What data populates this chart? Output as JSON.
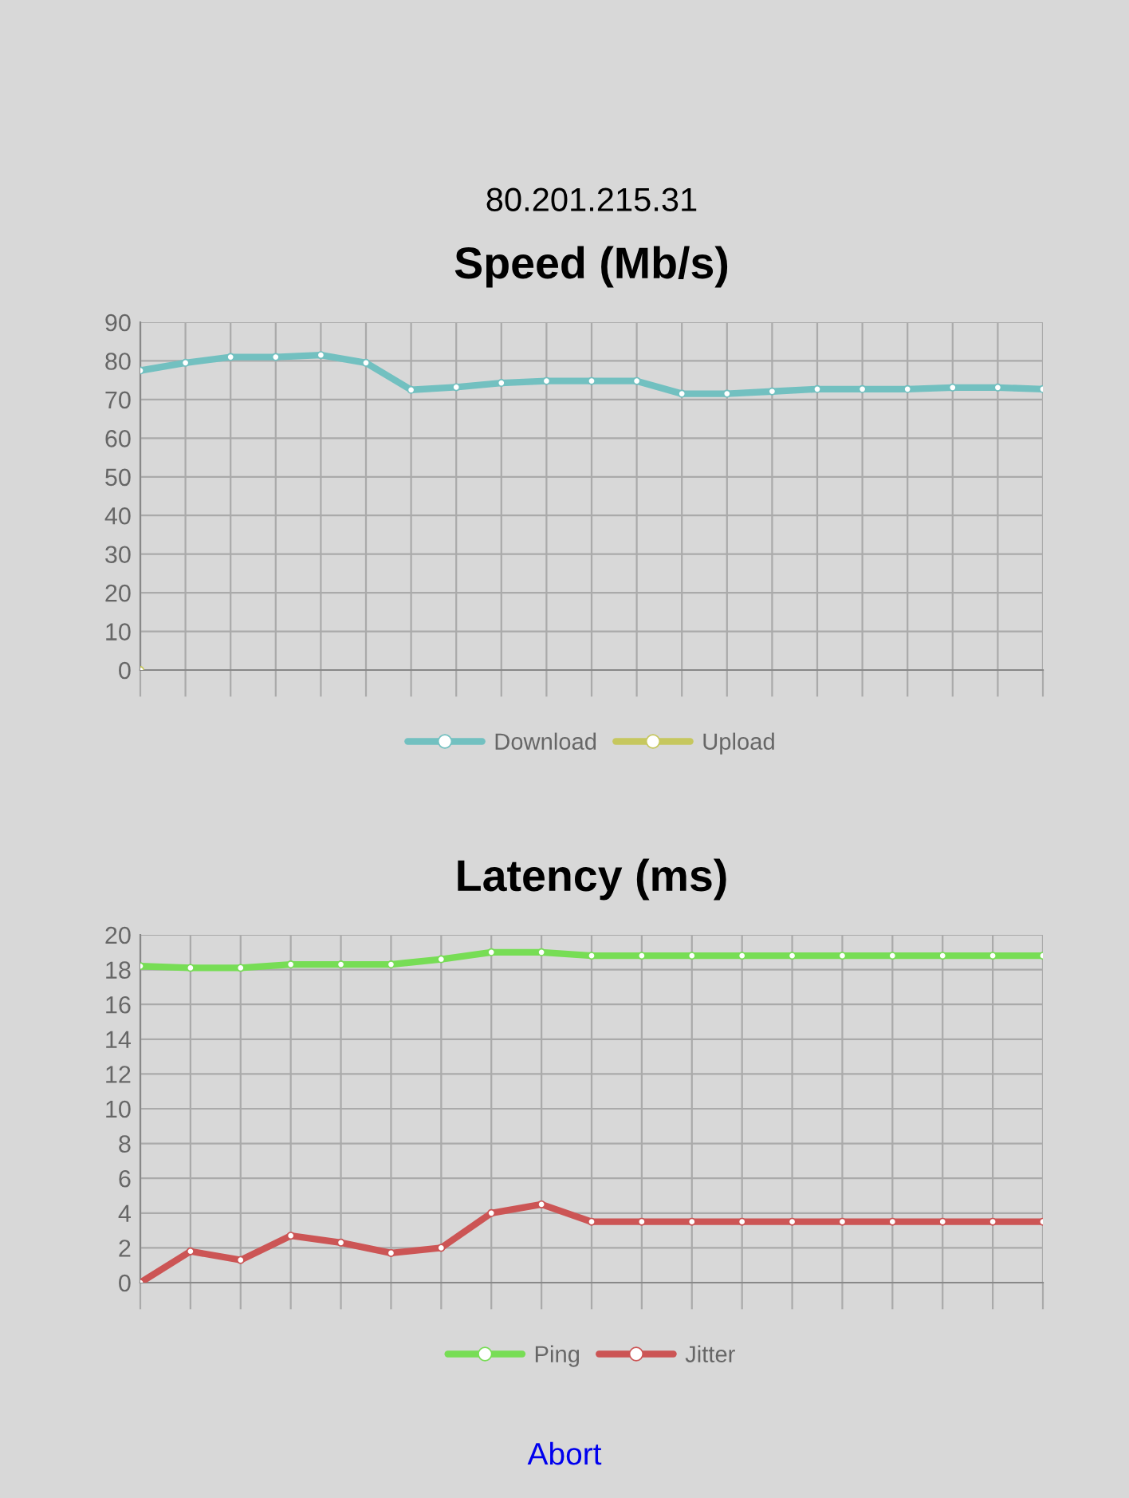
{
  "chart_data": [
    {
      "type": "line",
      "title": "Speed (Mb/s)",
      "subtitle": "80.201.215.31",
      "categories": [
        null,
        null,
        null,
        null,
        null,
        null,
        null,
        null,
        null,
        null,
        null,
        null,
        null,
        null,
        null,
        null,
        null,
        null,
        null,
        null,
        null
      ],
      "series": [
        {
          "name": "Download",
          "color": "#72c0c0",
          "values": [
            77.5,
            79.5,
            81,
            81,
            81.5,
            79.5,
            72.5,
            73.2,
            74.3,
            74.8,
            74.8,
            74.8,
            71.5,
            71.5,
            72.1,
            72.7,
            72.7,
            72.7,
            73.1,
            73.1,
            72.7
          ]
        },
        {
          "name": "Upload",
          "color": "#c6c75e",
          "values": [
            0,
            null,
            null,
            null,
            null,
            null,
            null,
            null,
            null,
            null,
            null,
            null,
            null,
            null,
            null,
            null,
            null,
            null,
            null,
            null,
            null
          ]
        }
      ],
      "ylim": [
        0,
        90
      ],
      "yticks": [
        0,
        10,
        20,
        30,
        40,
        50,
        60,
        70,
        80,
        90
      ],
      "grid": true,
      "legend": "bottom",
      "tick_labels": "y",
      "marker": "circle",
      "line_style": "solid"
    },
    {
      "type": "line",
      "title": "Latency (ms)",
      "annotations": [
        "Abort"
      ],
      "categories": [
        null,
        null,
        null,
        null,
        null,
        null,
        null,
        null,
        null,
        null,
        null,
        null,
        null,
        null,
        null,
        null,
        null,
        null,
        null
      ],
      "series": [
        {
          "name": "Ping",
          "color": "#77dd55",
          "values": [
            18.2,
            18.1,
            18.1,
            18.3,
            18.3,
            18.3,
            18.6,
            19,
            19,
            18.8,
            18.8,
            18.8,
            18.8,
            18.8,
            18.8,
            18.8,
            18.8,
            18.8,
            18.8
          ]
        },
        {
          "name": "Jitter",
          "color": "#cc5555",
          "values": [
            0,
            1.8,
            1.3,
            2.7,
            2.3,
            1.7,
            2.0,
            4.0,
            4.5,
            3.5,
            3.5,
            3.5,
            3.5,
            3.5,
            3.5,
            3.5,
            3.5,
            3.5,
            3.5
          ]
        }
      ],
      "ylim": [
        0,
        20
      ],
      "yticks": [
        0,
        2,
        4,
        6,
        8,
        10,
        12,
        14,
        16,
        18,
        20
      ],
      "grid": true,
      "legend": "bottom",
      "tick_labels": "y",
      "marker": "circle",
      "line_style": "solid"
    }
  ]
}
